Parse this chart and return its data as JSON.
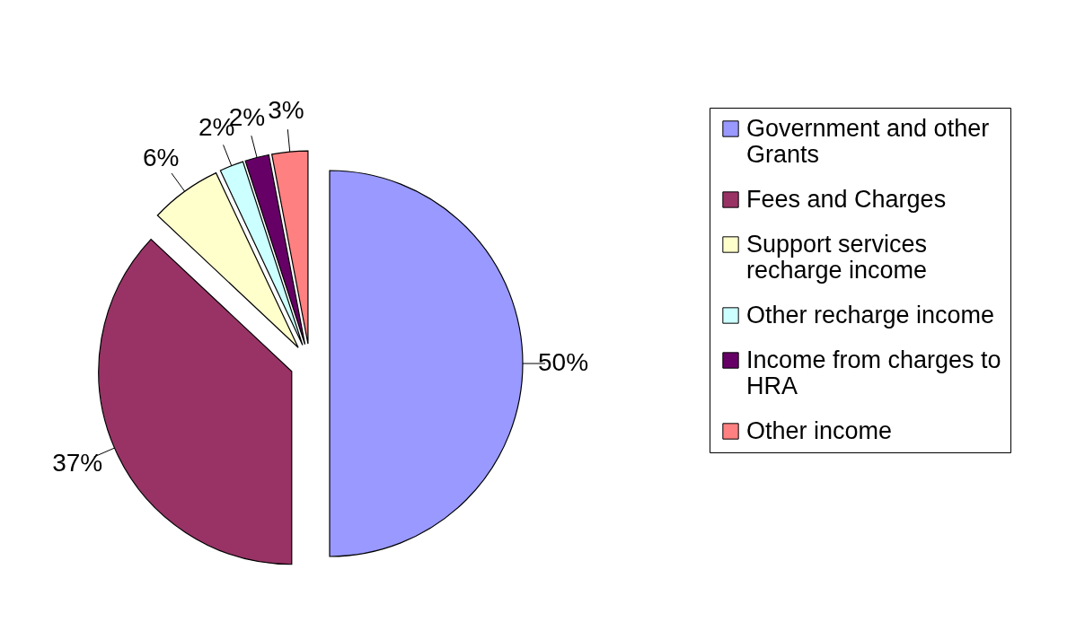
{
  "chart_data": {
    "type": "pie",
    "categories": [
      "Government and other Grants",
      "Fees and Charges",
      "Support services recharge income",
      "Other recharge income",
      "Income from charges to HRA",
      "Other income"
    ],
    "values": [
      50,
      37,
      6,
      2,
      2,
      3
    ],
    "value_labels": [
      "50%",
      "37%",
      "6%",
      "2%",
      "2%",
      "3%"
    ],
    "colors": [
      "#9999ff",
      "#993366",
      "#ffffcc",
      "#ccffff",
      "#660066",
      "#ff8080"
    ],
    "legend": "right"
  }
}
